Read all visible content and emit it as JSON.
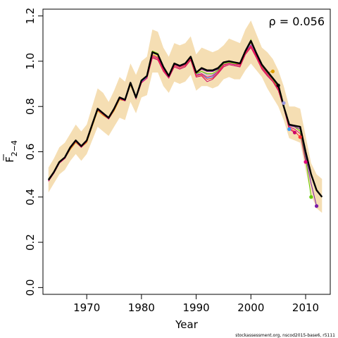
{
  "chart_data": {
    "type": "line",
    "xlabel": "Year",
    "ylabel": "F2-4",
    "ylabel_main": "F",
    "ylabel_sub": "2−4",
    "annotation": "ρ = 0.056",
    "footer": "stockassessment.org, nscod2015-base6, r5111",
    "xlim": [
      1962,
      2014.5
    ],
    "ylim": [
      -0.03,
      1.23
    ],
    "x_ticks": [
      1970,
      1980,
      1990,
      2000,
      2010
    ],
    "y_ticks": [
      0.0,
      0.2,
      0.4,
      0.6,
      0.8,
      1.0,
      1.2
    ],
    "y_tick_labels": [
      "0.0",
      "0.2",
      "0.4",
      "0.6",
      "0.8",
      "1.0",
      "1.2"
    ],
    "x_tick_labels": [
      "1970",
      "1980",
      "1990",
      "2000",
      "2010"
    ],
    "band_color": "#f5deb3",
    "main_color": "#000000",
    "confidence_band": {
      "years": [
        1963,
        1964,
        1965,
        1966,
        1967,
        1968,
        1969,
        1970,
        1971,
        1972,
        1973,
        1974,
        1975,
        1976,
        1977,
        1978,
        1979,
        1980,
        1981,
        1982,
        1983,
        1984,
        1985,
        1986,
        1987,
        1988,
        1989,
        1990,
        1991,
        1992,
        1993,
        1994,
        1995,
        1996,
        1997,
        1998,
        1999,
        2000,
        2001,
        2002,
        2003,
        2004,
        2005,
        2006,
        2007,
        2008,
        2009,
        2010,
        2011,
        2012,
        2013
      ],
      "lower": [
        0.42,
        0.46,
        0.5,
        0.52,
        0.56,
        0.59,
        0.56,
        0.59,
        0.65,
        0.71,
        0.69,
        0.67,
        0.71,
        0.75,
        0.74,
        0.82,
        0.77,
        0.84,
        0.85,
        0.95,
        0.95,
        0.89,
        0.86,
        0.91,
        0.9,
        0.91,
        0.94,
        0.87,
        0.89,
        0.89,
        0.88,
        0.89,
        0.92,
        0.93,
        0.92,
        0.92,
        0.96,
        0.99,
        0.96,
        0.93,
        0.88,
        0.84,
        0.8,
        0.74,
        0.66,
        0.65,
        0.64,
        0.52,
        0.41,
        0.35,
        0.33
      ],
      "upper": [
        0.53,
        0.57,
        0.62,
        0.64,
        0.68,
        0.72,
        0.69,
        0.72,
        0.8,
        0.88,
        0.86,
        0.82,
        0.87,
        0.93,
        0.91,
        0.99,
        0.94,
        1.0,
        1.02,
        1.14,
        1.13,
        1.06,
        1.02,
        1.08,
        1.07,
        1.08,
        1.11,
        1.03,
        1.06,
        1.05,
        1.04,
        1.05,
        1.07,
        1.1,
        1.09,
        1.08,
        1.14,
        1.18,
        1.12,
        1.06,
        1.04,
        1.01,
        0.96,
        0.89,
        0.8,
        0.8,
        0.79,
        0.67,
        0.55,
        0.5,
        0.48
      ]
    },
    "main_series": {
      "name": "",
      "years": [
        1963,
        1964,
        1965,
        1966,
        1967,
        1968,
        1969,
        1970,
        1971,
        1972,
        1973,
        1974,
        1975,
        1976,
        1977,
        1978,
        1979,
        1980,
        1981,
        1982,
        1983,
        1984,
        1985,
        1986,
        1987,
        1988,
        1989,
        1990,
        1991,
        1992,
        1993,
        1994,
        1995,
        1996,
        1997,
        1998,
        1999,
        2000,
        2001,
        2002,
        2003,
        2004,
        2005,
        2006,
        2007,
        2008,
        2009,
        2010,
        2011,
        2012,
        2013
      ],
      "values": [
        0.475,
        0.51,
        0.555,
        0.575,
        0.62,
        0.65,
        0.625,
        0.65,
        0.72,
        0.79,
        0.77,
        0.75,
        0.79,
        0.84,
        0.83,
        0.905,
        0.84,
        0.915,
        0.935,
        1.04,
        1.03,
        0.975,
        0.935,
        0.99,
        0.98,
        0.99,
        1.02,
        0.95,
        0.97,
        0.96,
        0.96,
        0.97,
        0.995,
        1.0,
        0.995,
        0.99,
        1.045,
        1.09,
        1.035,
        0.985,
        0.955,
        0.925,
        0.895,
        0.8,
        0.72,
        0.715,
        0.71,
        0.6,
        0.5,
        0.43,
        0.4
      ]
    },
    "retro_series": [
      {
        "color": "#e0a000",
        "start": 1963,
        "values": [
          0.48,
          0.51,
          0.55,
          0.57,
          0.61,
          0.64,
          0.62,
          0.64,
          0.71,
          0.78,
          0.76,
          0.745,
          0.78,
          0.83,
          0.825,
          0.895,
          0.835,
          0.905,
          0.925,
          1.03,
          1.02,
          0.97,
          0.93,
          0.985,
          0.975,
          0.985,
          1.01,
          0.945,
          0.965,
          0.955,
          0.955,
          0.965,
          0.99,
          0.995,
          0.99,
          0.985,
          1.04,
          1.08,
          1.03,
          0.98,
          0.95,
          0.955
        ],
        "end_point": [
          2004,
          0.955
        ]
      },
      {
        "color": "#000000",
        "start": 1963,
        "values": [
          0.48,
          0.51,
          0.555,
          0.575,
          0.62,
          0.65,
          0.625,
          0.65,
          0.72,
          0.79,
          0.77,
          0.75,
          0.79,
          0.84,
          0.83,
          0.905,
          0.84,
          0.915,
          0.935,
          1.04,
          1.03,
          0.975,
          0.935,
          0.99,
          0.98,
          0.99,
          1.02,
          0.95,
          0.965,
          0.955,
          0.955,
          0.965,
          0.995,
          1.0,
          0.995,
          0.99,
          1.045,
          1.09,
          1.035,
          0.985,
          0.955,
          0.925,
          0.893
        ],
        "end_point": [
          2005,
          0.893
        ]
      },
      {
        "color": "#9a9ae0",
        "start": 1963,
        "values": [
          0.47,
          0.505,
          0.55,
          0.57,
          0.615,
          0.645,
          0.62,
          0.645,
          0.715,
          0.785,
          0.765,
          0.745,
          0.785,
          0.835,
          0.825,
          0.9,
          0.835,
          0.91,
          0.93,
          1.025,
          1.015,
          0.965,
          0.93,
          0.985,
          0.975,
          0.985,
          1.015,
          0.94,
          0.955,
          0.94,
          0.94,
          0.955,
          0.985,
          0.99,
          0.985,
          0.985,
          1.04,
          1.075,
          1.025,
          0.975,
          0.945,
          0.92,
          0.88,
          0.815
        ],
        "end_point": [
          2006,
          0.815
        ]
      },
      {
        "color": "#3399ff",
        "start": 1963,
        "values": [
          0.47,
          0.505,
          0.55,
          0.57,
          0.615,
          0.645,
          0.62,
          0.645,
          0.715,
          0.785,
          0.765,
          0.745,
          0.785,
          0.835,
          0.825,
          0.9,
          0.835,
          0.91,
          0.93,
          1.02,
          1.01,
          0.96,
          0.93,
          0.98,
          0.97,
          0.98,
          1.01,
          0.935,
          0.945,
          0.925,
          0.93,
          0.95,
          0.98,
          0.99,
          0.985,
          0.98,
          1.035,
          1.07,
          1.02,
          0.97,
          0.94,
          0.915,
          0.875,
          0.8,
          0.7
        ],
        "end_point": [
          2007,
          0.7
        ]
      },
      {
        "color": "#cc0066",
        "start": 1963,
        "values": [
          0.47,
          0.505,
          0.55,
          0.57,
          0.615,
          0.645,
          0.62,
          0.645,
          0.715,
          0.785,
          0.765,
          0.745,
          0.785,
          0.835,
          0.825,
          0.9,
          0.835,
          0.905,
          0.925,
          1.015,
          1.005,
          0.955,
          0.925,
          0.975,
          0.965,
          0.975,
          1.005,
          0.93,
          0.935,
          0.91,
          0.92,
          0.945,
          0.975,
          0.985,
          0.98,
          0.975,
          1.03,
          1.06,
          1.015,
          0.965,
          0.935,
          0.91,
          0.87,
          0.795,
          0.7,
          0.685
        ],
        "end_point": [
          2008,
          0.685
        ]
      },
      {
        "color": "#ff3333",
        "start": 1963,
        "values": [
          0.47,
          0.505,
          0.55,
          0.57,
          0.615,
          0.645,
          0.62,
          0.645,
          0.715,
          0.785,
          0.765,
          0.745,
          0.785,
          0.835,
          0.825,
          0.9,
          0.835,
          0.905,
          0.925,
          1.02,
          1.01,
          0.96,
          0.93,
          0.98,
          0.97,
          0.98,
          1.01,
          0.935,
          0.94,
          0.92,
          0.925,
          0.95,
          0.98,
          0.99,
          0.985,
          0.98,
          1.035,
          1.065,
          1.02,
          0.97,
          0.94,
          0.915,
          0.875,
          0.8,
          0.705,
          0.69,
          0.665
        ],
        "end_point": [
          2009,
          0.665
        ]
      },
      {
        "color": "#e0007a",
        "start": 1963,
        "values": [
          0.47,
          0.505,
          0.55,
          0.57,
          0.615,
          0.645,
          0.62,
          0.645,
          0.715,
          0.785,
          0.765,
          0.745,
          0.785,
          0.835,
          0.825,
          0.9,
          0.835,
          0.905,
          0.925,
          1.025,
          1.015,
          0.965,
          0.93,
          0.985,
          0.975,
          0.985,
          1.015,
          0.94,
          0.945,
          0.93,
          0.935,
          0.955,
          0.985,
          0.99,
          0.985,
          0.985,
          1.04,
          1.07,
          1.025,
          0.975,
          0.945,
          0.92,
          0.88,
          0.805,
          0.71,
          0.7,
          0.68,
          0.555
        ],
        "end_point": [
          2010,
          0.555
        ]
      },
      {
        "color": "#66cc00",
        "start": 1963,
        "values": [
          0.48,
          0.51,
          0.555,
          0.575,
          0.62,
          0.65,
          0.625,
          0.65,
          0.72,
          0.79,
          0.77,
          0.75,
          0.79,
          0.84,
          0.83,
          0.905,
          0.84,
          0.915,
          0.935,
          1.045,
          1.035,
          0.975,
          0.935,
          0.99,
          0.98,
          0.99,
          1.02,
          0.945,
          0.955,
          0.945,
          0.945,
          0.96,
          0.99,
          0.995,
          0.99,
          0.99,
          1.045,
          1.095,
          1.035,
          0.98,
          0.95,
          0.92,
          0.885,
          0.81,
          0.715,
          0.71,
          0.69,
          0.57,
          0.4
        ],
        "end_point": [
          2011,
          0.4
        ]
      },
      {
        "color": "#7a1aa8",
        "start": 1963,
        "values": [
          0.475,
          0.51,
          0.555,
          0.575,
          0.62,
          0.65,
          0.625,
          0.65,
          0.72,
          0.79,
          0.77,
          0.75,
          0.79,
          0.84,
          0.83,
          0.905,
          0.84,
          0.915,
          0.935,
          1.04,
          1.03,
          0.975,
          0.935,
          0.99,
          0.98,
          0.99,
          1.02,
          0.95,
          0.965,
          0.955,
          0.955,
          0.965,
          0.995,
          1.0,
          0.995,
          0.99,
          1.045,
          1.09,
          1.035,
          0.985,
          0.955,
          0.925,
          0.89,
          0.805,
          0.715,
          0.71,
          0.7,
          0.58,
          0.46,
          0.36
        ],
        "end_point": [
          2012,
          0.36
        ]
      }
    ]
  }
}
